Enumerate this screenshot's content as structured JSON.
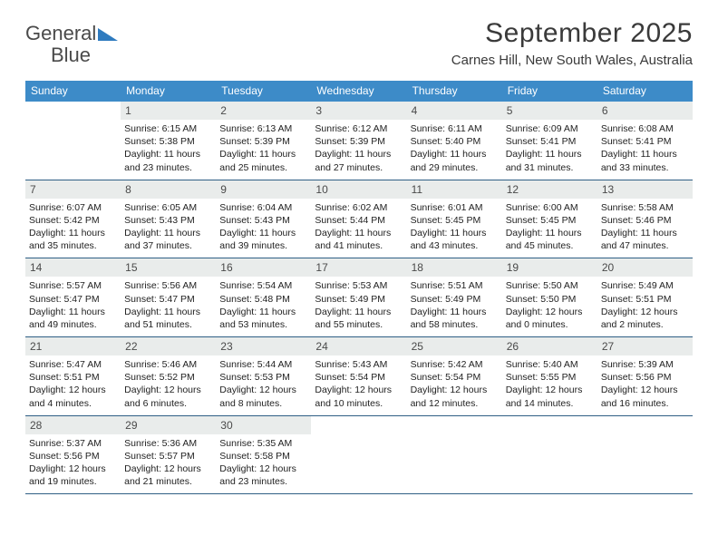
{
  "logo": {
    "word1": "General",
    "word2": "Blue"
  },
  "title": "September 2025",
  "subtitle": "Carnes Hill, New South Wales, Australia",
  "calendar": {
    "header_bg": "#3d8bc8",
    "header_text_color": "#ffffff",
    "daynum_bg": "#e9eceb",
    "week_border_color": "#2f5f85",
    "weekdays": [
      "Sunday",
      "Monday",
      "Tuesday",
      "Wednesday",
      "Thursday",
      "Friday",
      "Saturday"
    ],
    "weeks": [
      [
        null,
        {
          "n": "1",
          "sunrise": "6:15 AM",
          "sunset": "5:38 PM",
          "daylight": "11 hours and 23 minutes."
        },
        {
          "n": "2",
          "sunrise": "6:13 AM",
          "sunset": "5:39 PM",
          "daylight": "11 hours and 25 minutes."
        },
        {
          "n": "3",
          "sunrise": "6:12 AM",
          "sunset": "5:39 PM",
          "daylight": "11 hours and 27 minutes."
        },
        {
          "n": "4",
          "sunrise": "6:11 AM",
          "sunset": "5:40 PM",
          "daylight": "11 hours and 29 minutes."
        },
        {
          "n": "5",
          "sunrise": "6:09 AM",
          "sunset": "5:41 PM",
          "daylight": "11 hours and 31 minutes."
        },
        {
          "n": "6",
          "sunrise": "6:08 AM",
          "sunset": "5:41 PM",
          "daylight": "11 hours and 33 minutes."
        }
      ],
      [
        {
          "n": "7",
          "sunrise": "6:07 AM",
          "sunset": "5:42 PM",
          "daylight": "11 hours and 35 minutes."
        },
        {
          "n": "8",
          "sunrise": "6:05 AM",
          "sunset": "5:43 PM",
          "daylight": "11 hours and 37 minutes."
        },
        {
          "n": "9",
          "sunrise": "6:04 AM",
          "sunset": "5:43 PM",
          "daylight": "11 hours and 39 minutes."
        },
        {
          "n": "10",
          "sunrise": "6:02 AM",
          "sunset": "5:44 PM",
          "daylight": "11 hours and 41 minutes."
        },
        {
          "n": "11",
          "sunrise": "6:01 AM",
          "sunset": "5:45 PM",
          "daylight": "11 hours and 43 minutes."
        },
        {
          "n": "12",
          "sunrise": "6:00 AM",
          "sunset": "5:45 PM",
          "daylight": "11 hours and 45 minutes."
        },
        {
          "n": "13",
          "sunrise": "5:58 AM",
          "sunset": "5:46 PM",
          "daylight": "11 hours and 47 minutes."
        }
      ],
      [
        {
          "n": "14",
          "sunrise": "5:57 AM",
          "sunset": "5:47 PM",
          "daylight": "11 hours and 49 minutes."
        },
        {
          "n": "15",
          "sunrise": "5:56 AM",
          "sunset": "5:47 PM",
          "daylight": "11 hours and 51 minutes."
        },
        {
          "n": "16",
          "sunrise": "5:54 AM",
          "sunset": "5:48 PM",
          "daylight": "11 hours and 53 minutes."
        },
        {
          "n": "17",
          "sunrise": "5:53 AM",
          "sunset": "5:49 PM",
          "daylight": "11 hours and 55 minutes."
        },
        {
          "n": "18",
          "sunrise": "5:51 AM",
          "sunset": "5:49 PM",
          "daylight": "11 hours and 58 minutes."
        },
        {
          "n": "19",
          "sunrise": "5:50 AM",
          "sunset": "5:50 PM",
          "daylight": "12 hours and 0 minutes."
        },
        {
          "n": "20",
          "sunrise": "5:49 AM",
          "sunset": "5:51 PM",
          "daylight": "12 hours and 2 minutes."
        }
      ],
      [
        {
          "n": "21",
          "sunrise": "5:47 AM",
          "sunset": "5:51 PM",
          "daylight": "12 hours and 4 minutes."
        },
        {
          "n": "22",
          "sunrise": "5:46 AM",
          "sunset": "5:52 PM",
          "daylight": "12 hours and 6 minutes."
        },
        {
          "n": "23",
          "sunrise": "5:44 AM",
          "sunset": "5:53 PM",
          "daylight": "12 hours and 8 minutes."
        },
        {
          "n": "24",
          "sunrise": "5:43 AM",
          "sunset": "5:54 PM",
          "daylight": "12 hours and 10 minutes."
        },
        {
          "n": "25",
          "sunrise": "5:42 AM",
          "sunset": "5:54 PM",
          "daylight": "12 hours and 12 minutes."
        },
        {
          "n": "26",
          "sunrise": "5:40 AM",
          "sunset": "5:55 PM",
          "daylight": "12 hours and 14 minutes."
        },
        {
          "n": "27",
          "sunrise": "5:39 AM",
          "sunset": "5:56 PM",
          "daylight": "12 hours and 16 minutes."
        }
      ],
      [
        {
          "n": "28",
          "sunrise": "5:37 AM",
          "sunset": "5:56 PM",
          "daylight": "12 hours and 19 minutes."
        },
        {
          "n": "29",
          "sunrise": "5:36 AM",
          "sunset": "5:57 PM",
          "daylight": "12 hours and 21 minutes."
        },
        {
          "n": "30",
          "sunrise": "5:35 AM",
          "sunset": "5:58 PM",
          "daylight": "12 hours and 23 minutes."
        },
        null,
        null,
        null,
        null
      ]
    ],
    "labels": {
      "sunrise": "Sunrise:",
      "sunset": "Sunset:",
      "daylight": "Daylight:"
    }
  }
}
